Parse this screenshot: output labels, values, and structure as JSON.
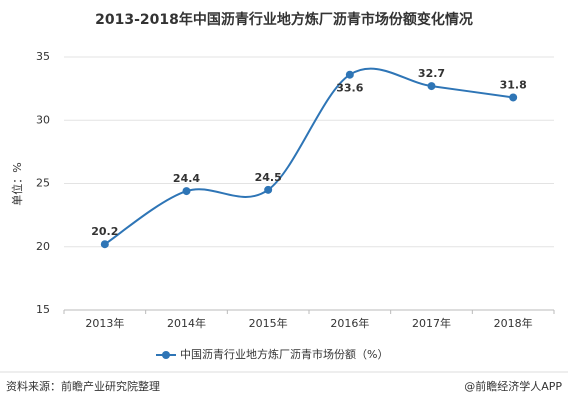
{
  "chart_data": {
    "type": "line",
    "title": "2013-2018年中国沥青行业地方炼厂沥青市场份额变化情况",
    "y_label": "单位：%",
    "categories": [
      "2013年",
      "2014年",
      "2015年",
      "2016年",
      "2017年",
      "2018年"
    ],
    "series": [
      {
        "name": "中国沥青行业地方炼厂沥青市场份额（%）",
        "color": "#2e75b6",
        "values": [
          20.2,
          24.4,
          24.5,
          33.6,
          32.7,
          31.8
        ]
      }
    ],
    "ylim": [
      15,
      35
    ],
    "yticks": [
      15,
      20,
      25,
      30,
      35
    ],
    "grid": true,
    "smooth": true
  },
  "footer": {
    "source": "资料来源：前瞻产业研究院整理",
    "brand": "@前瞻经济学人APP"
  }
}
